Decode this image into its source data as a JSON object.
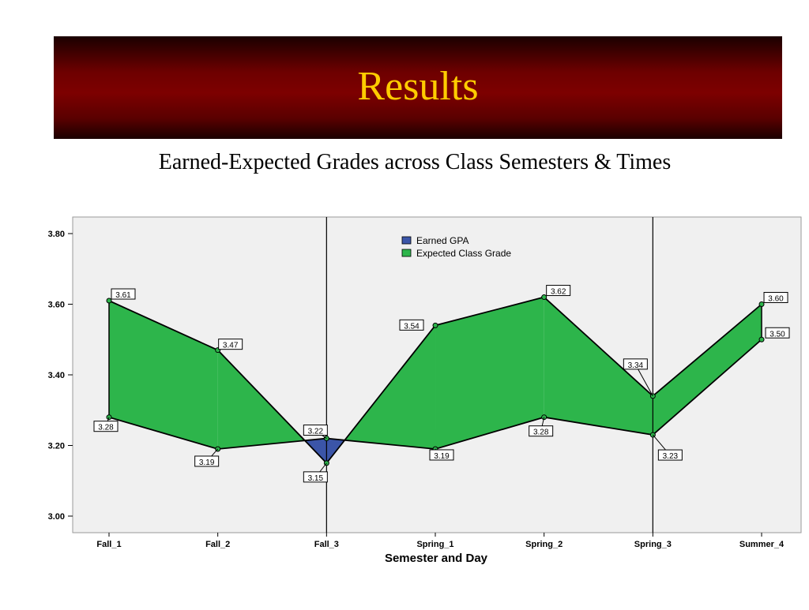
{
  "slide": {
    "title": "Results",
    "subtitle": "Earned-Expected Grades across Class Semesters & Times"
  },
  "colors": {
    "banner": "#6e0000",
    "title": "#ffcc00",
    "expected_fill": "#2db54b",
    "earned_fill": "#3b55a8",
    "plot_bg": "#f0f0f0"
  },
  "chart_data": {
    "type": "area",
    "categories": [
      "Fall_1",
      "Fall_2",
      "Fall_3",
      "Spring_1",
      "Spring_2",
      "Spring_3",
      "Summer_4"
    ],
    "series": [
      {
        "name": "Earned GPA",
        "values": [
          3.28,
          3.19,
          3.22,
          3.19,
          3.28,
          3.23,
          3.5
        ]
      },
      {
        "name": "Expected Class Grade",
        "values": [
          3.61,
          3.47,
          3.15,
          3.54,
          3.62,
          3.34,
          3.6
        ]
      }
    ],
    "data_labels": {
      "earned": [
        "3.28",
        "3.19",
        "3.22",
        "3.19",
        "3.28",
        "3.23",
        "3.50"
      ],
      "expected": [
        "3.61",
        "3.47",
        "3.15",
        "3.54",
        "3.62",
        "3.34",
        "3.60"
      ]
    },
    "xlabel": "Semester and Day",
    "ylabel": "",
    "ylim": [
      3.0,
      3.8
    ],
    "yticks": [
      3.0,
      3.2,
      3.4,
      3.6,
      3.8
    ],
    "ytick_labels": [
      "3.00",
      "3.20",
      "3.40",
      "3.60",
      "3.80"
    ],
    "reference_lines_at": [
      "Fall_3",
      "Spring_3"
    ],
    "legend": "top-center",
    "grid": false
  }
}
